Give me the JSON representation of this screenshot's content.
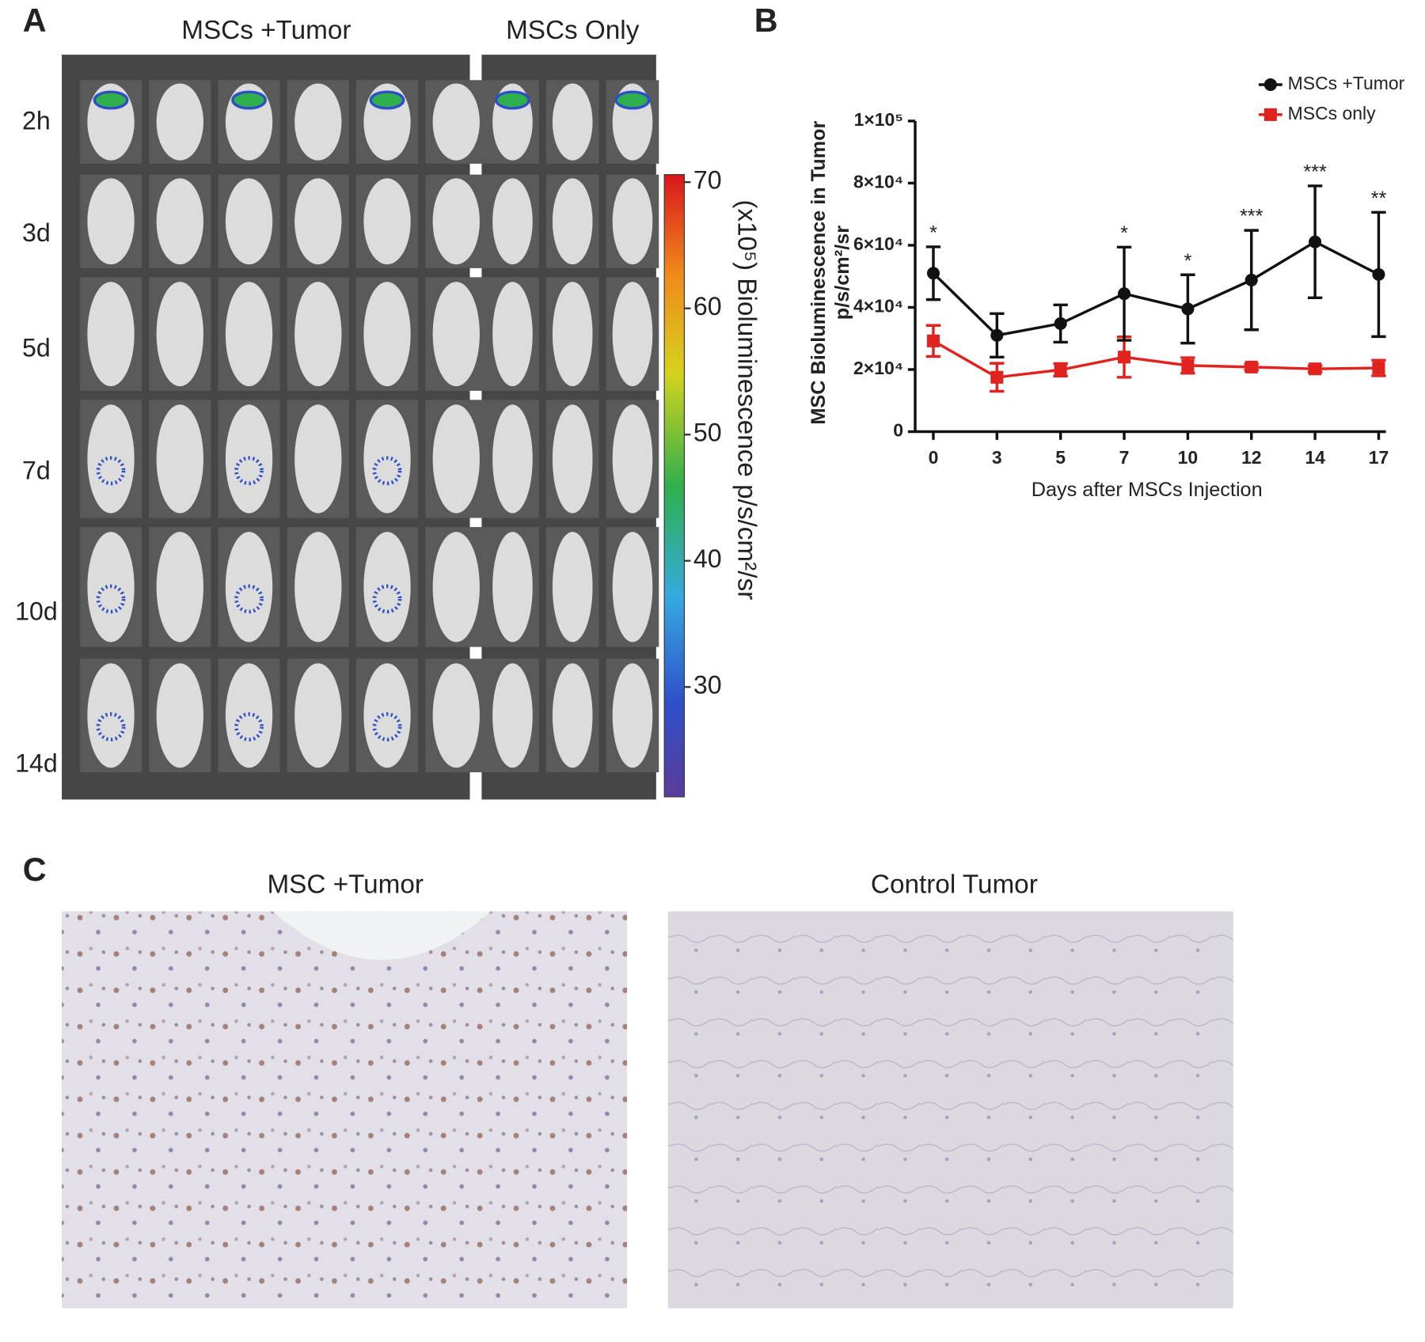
{
  "panel_labels": [
    "A",
    "B",
    "C"
  ],
  "panel_a": {
    "column_headers": [
      "MSCs +Tumor",
      "MSCs Only"
    ],
    "row_labels": [
      "2h",
      "3d",
      "5d",
      "7d",
      "10d",
      "14d"
    ],
    "colorbar": {
      "lim": [
        21.3,
        70.6
      ],
      "ticks": [
        30,
        40,
        50,
        60,
        70
      ],
      "label": "(x10⁵) Bioluminescence p/s/cm²/sr"
    }
  },
  "chart_data": {
    "type": "line",
    "ylabel": "MSC Bioluminescence in Tumor",
    "ylabel_units": "p/s/cm²/sr",
    "xlabel": "Days after MSCs Injection",
    "categories": [
      "0",
      "3",
      "5",
      "7",
      "10",
      "12",
      "14",
      "17"
    ],
    "ylim": [
      0,
      100000
    ],
    "yticks": [
      0,
      {
        "value": 20000,
        "label": "2×10⁴"
      },
      {
        "value": 40000,
        "label": "4×10⁴"
      },
      {
        "value": 60000,
        "label": "6×10⁴"
      },
      {
        "value": 80000,
        "label": "8×10⁴"
      },
      {
        "value": 100000,
        "label": "1×10⁵"
      }
    ],
    "legend": "top-right",
    "series": [
      {
        "name": "MSCs +Tumor",
        "color": "#111111",
        "marker": "circle",
        "values": [
          51000,
          31000,
          34800,
          44400,
          39500,
          48800,
          61100,
          50600
        ],
        "errors": [
          8500,
          7000,
          6000,
          15000,
          11000,
          16000,
          18000,
          20000
        ]
      },
      {
        "name": "MSCs only",
        "color": "#e0231f",
        "marker": "square",
        "values": [
          29200,
          17500,
          19900,
          24000,
          21300,
          20800,
          20200,
          20500
        ],
        "errors": [
          5000,
          4500,
          2000,
          6500,
          2500,
          1000,
          1000,
          2500
        ]
      }
    ],
    "annotations": [
      "*",
      null,
      null,
      "*",
      "*",
      "***",
      "***",
      "**"
    ]
  },
  "panel_c": {
    "titles": [
      "MSC +Tumor",
      "Control Tumor"
    ]
  }
}
